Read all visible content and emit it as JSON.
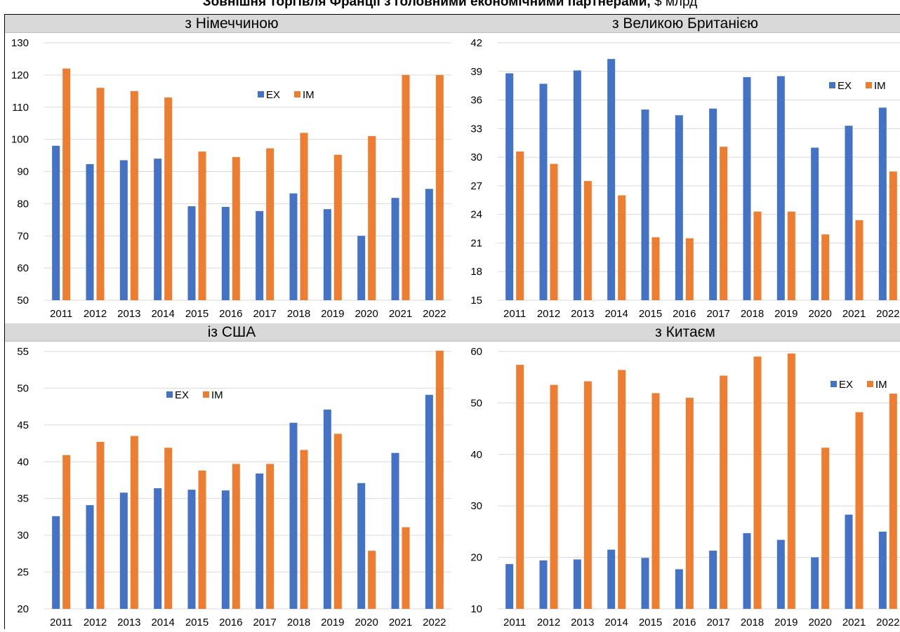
{
  "title": {
    "main": "Зовнішня торгівля Франції з головними економічними партнерами,",
    "unit": "$ млрд"
  },
  "colors": {
    "ex": "#4472C4",
    "im": "#ED7D31",
    "header_bg": "#D9D9D9"
  },
  "chart_data": [
    {
      "type": "bar",
      "title": "з Німеччиною",
      "categories": [
        "2011",
        "2012",
        "2013",
        "2014",
        "2015",
        "2016",
        "2017",
        "2018",
        "2019",
        "2020",
        "2021",
        "2022"
      ],
      "series": [
        {
          "name": "EX",
          "values": [
            98,
            92.3,
            93.5,
            94,
            79.2,
            79,
            77.7,
            83.2,
            78.3,
            70,
            81.8,
            84.6
          ]
        },
        {
          "name": "IM",
          "values": [
            122,
            116,
            115,
            113,
            96.2,
            94.5,
            97.2,
            102,
            95.2,
            101,
            120,
            120
          ]
        }
      ],
      "ylim": [
        50,
        130
      ],
      "yticks": [
        50,
        60,
        70,
        80,
        90,
        100,
        110,
        120,
        130
      ],
      "xlabel": "",
      "ylabel": "",
      "grid": true,
      "legend": "top-center"
    },
    {
      "type": "bar",
      "title": "з Великою Британією",
      "categories": [
        "2011",
        "2012",
        "2013",
        "2014",
        "2015",
        "2016",
        "2017",
        "2018",
        "2019",
        "2020",
        "2021",
        "2022"
      ],
      "series": [
        {
          "name": "EX",
          "values": [
            38.8,
            37.7,
            39.1,
            40.3,
            35,
            34.4,
            35.1,
            38.4,
            38.5,
            31,
            33.3,
            35.2
          ]
        },
        {
          "name": "IM",
          "values": [
            30.6,
            29.3,
            27.5,
            26,
            21.6,
            21.5,
            31.1,
            24.3,
            24.3,
            21.9,
            23.4,
            28.5
          ]
        }
      ],
      "ylim": [
        15,
        42
      ],
      "yticks": [
        15,
        18,
        21,
        24,
        27,
        30,
        33,
        36,
        39,
        42
      ],
      "xlabel": "",
      "ylabel": "",
      "grid": true,
      "legend": "top-right"
    },
    {
      "type": "bar",
      "title": "із США",
      "categories": [
        "2011",
        "2012",
        "2013",
        "2014",
        "2015",
        "2016",
        "2017",
        "2018",
        "2019",
        "2020",
        "2021",
        "2022"
      ],
      "series": [
        {
          "name": "EX",
          "values": [
            32.6,
            34.1,
            35.8,
            36.4,
            36.2,
            36.1,
            38.4,
            45.3,
            47.1,
            37.1,
            41.2,
            49.1
          ]
        },
        {
          "name": "IM",
          "values": [
            40.9,
            42.7,
            43.5,
            41.9,
            38.8,
            39.7,
            39.7,
            41.6,
            43.8,
            27.9,
            31.1,
            55.1
          ]
        }
      ],
      "ylim": [
        20,
        55
      ],
      "yticks": [
        20,
        25,
        30,
        35,
        40,
        45,
        50,
        55
      ],
      "xlabel": "",
      "ylabel": "",
      "grid": true,
      "legend": "top-center"
    },
    {
      "type": "bar",
      "title": "з Китаєм",
      "categories": [
        "2011",
        "2012",
        "2013",
        "2014",
        "2015",
        "2016",
        "2017",
        "2018",
        "2019",
        "2020",
        "2021",
        "2022"
      ],
      "series": [
        {
          "name": "EX",
          "values": [
            18.7,
            19.4,
            19.6,
            21.5,
            19.9,
            17.7,
            21.3,
            24.7,
            23.4,
            20,
            28.3,
            25
          ]
        },
        {
          "name": "IM",
          "values": [
            57.4,
            53.5,
            54.2,
            56.4,
            51.9,
            51,
            55.3,
            59,
            59.6,
            41.3,
            48.2,
            51.8
          ]
        }
      ],
      "ylim": [
        10,
        60
      ],
      "yticks": [
        10,
        20,
        30,
        40,
        50,
        60
      ],
      "xlabel": "",
      "ylabel": "",
      "grid": true,
      "legend": "top-right"
    }
  ]
}
